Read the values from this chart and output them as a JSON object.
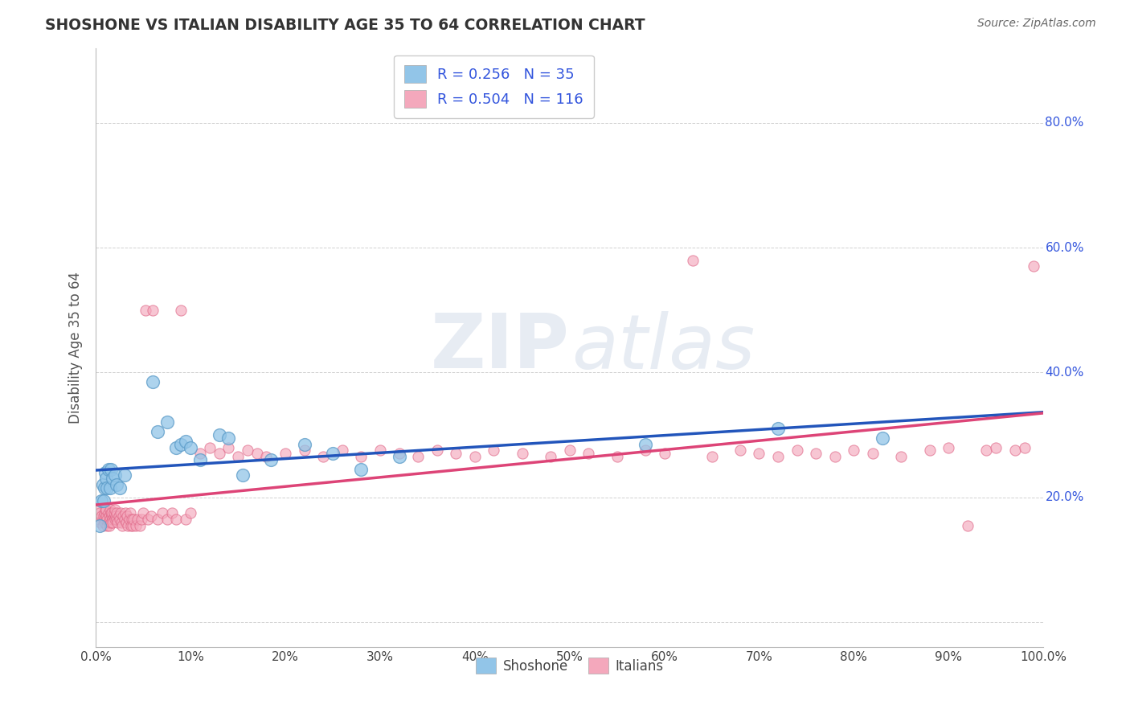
{
  "title": "SHOSHONE VS ITALIAN DISABILITY AGE 35 TO 64 CORRELATION CHART",
  "source_text": "Source: ZipAtlas.com",
  "ylabel": "Disability Age 35 to 64",
  "shoshone_color": "#92C5E8",
  "shoshone_edge_color": "#5B9BC8",
  "italian_color": "#F4A8BC",
  "italian_edge_color": "#E06888",
  "shoshone_line_color": "#2255BB",
  "italian_line_color": "#DD4477",
  "shoshone_R": 0.256,
  "shoshone_N": 35,
  "italian_R": 0.504,
  "italian_N": 116,
  "xlim": [
    0.0,
    1.0
  ],
  "ylim": [
    -0.04,
    0.92
  ],
  "xtick_positions": [
    0.0,
    0.1,
    0.2,
    0.3,
    0.4,
    0.5,
    0.6,
    0.7,
    0.8,
    0.9,
    1.0
  ],
  "ytick_positions": [
    0.0,
    0.2,
    0.4,
    0.6,
    0.8
  ],
  "watermark_zip": "ZIP",
  "watermark_atlas": "atlas",
  "background_color": "#ffffff",
  "legend_text_color": "#3355DD",
  "shoshone_x": [
    0.004,
    0.006,
    0.007,
    0.008,
    0.009,
    0.01,
    0.011,
    0.012,
    0.013,
    0.015,
    0.016,
    0.018,
    0.02,
    0.022,
    0.025,
    0.03,
    0.06,
    0.065,
    0.075,
    0.085,
    0.09,
    0.095,
    0.1,
    0.11,
    0.13,
    0.14,
    0.155,
    0.185,
    0.22,
    0.25,
    0.28,
    0.32,
    0.58,
    0.72,
    0.83
  ],
  "shoshone_y": [
    0.155,
    0.195,
    0.22,
    0.195,
    0.215,
    0.24,
    0.23,
    0.215,
    0.245,
    0.215,
    0.245,
    0.23,
    0.235,
    0.22,
    0.215,
    0.235,
    0.385,
    0.305,
    0.32,
    0.28,
    0.285,
    0.29,
    0.28,
    0.26,
    0.3,
    0.295,
    0.235,
    0.26,
    0.285,
    0.27,
    0.245,
    0.265,
    0.285,
    0.31,
    0.295
  ],
  "italian_x": [
    0.002,
    0.003,
    0.004,
    0.005,
    0.006,
    0.007,
    0.008,
    0.008,
    0.009,
    0.009,
    0.01,
    0.01,
    0.011,
    0.011,
    0.012,
    0.012,
    0.013,
    0.013,
    0.014,
    0.014,
    0.015,
    0.015,
    0.016,
    0.016,
    0.017,
    0.017,
    0.018,
    0.018,
    0.019,
    0.019,
    0.02,
    0.02,
    0.021,
    0.022,
    0.022,
    0.023,
    0.024,
    0.025,
    0.026,
    0.027,
    0.028,
    0.029,
    0.03,
    0.031,
    0.032,
    0.033,
    0.034,
    0.035,
    0.036,
    0.037,
    0.038,
    0.039,
    0.04,
    0.042,
    0.044,
    0.046,
    0.048,
    0.05,
    0.052,
    0.055,
    0.058,
    0.06,
    0.065,
    0.07,
    0.075,
    0.08,
    0.085,
    0.09,
    0.095,
    0.1,
    0.11,
    0.12,
    0.13,
    0.14,
    0.15,
    0.16,
    0.17,
    0.18,
    0.2,
    0.22,
    0.24,
    0.26,
    0.28,
    0.3,
    0.32,
    0.34,
    0.36,
    0.38,
    0.4,
    0.42,
    0.45,
    0.48,
    0.5,
    0.52,
    0.55,
    0.58,
    0.6,
    0.63,
    0.65,
    0.68,
    0.7,
    0.72,
    0.74,
    0.76,
    0.78,
    0.8,
    0.82,
    0.85,
    0.88,
    0.9,
    0.92,
    0.94,
    0.95,
    0.97,
    0.98,
    0.99
  ],
  "italian_y": [
    0.18,
    0.165,
    0.175,
    0.16,
    0.17,
    0.155,
    0.165,
    0.17,
    0.175,
    0.16,
    0.18,
    0.165,
    0.17,
    0.18,
    0.155,
    0.165,
    0.175,
    0.16,
    0.17,
    0.155,
    0.18,
    0.165,
    0.175,
    0.16,
    0.17,
    0.175,
    0.165,
    0.16,
    0.17,
    0.175,
    0.165,
    0.18,
    0.17,
    0.165,
    0.175,
    0.16,
    0.17,
    0.165,
    0.175,
    0.16,
    0.155,
    0.17,
    0.165,
    0.175,
    0.16,
    0.17,
    0.155,
    0.165,
    0.175,
    0.155,
    0.165,
    0.155,
    0.165,
    0.155,
    0.165,
    0.155,
    0.165,
    0.175,
    0.5,
    0.165,
    0.17,
    0.5,
    0.165,
    0.175,
    0.165,
    0.175,
    0.165,
    0.5,
    0.165,
    0.175,
    0.27,
    0.28,
    0.27,
    0.28,
    0.265,
    0.275,
    0.27,
    0.265,
    0.27,
    0.275,
    0.265,
    0.275,
    0.265,
    0.275,
    0.27,
    0.265,
    0.275,
    0.27,
    0.265,
    0.275,
    0.27,
    0.265,
    0.275,
    0.27,
    0.265,
    0.275,
    0.27,
    0.58,
    0.265,
    0.275,
    0.27,
    0.265,
    0.275,
    0.27,
    0.265,
    0.275,
    0.27,
    0.265,
    0.275,
    0.28,
    0.155,
    0.275,
    0.28,
    0.275,
    0.28,
    0.57
  ]
}
